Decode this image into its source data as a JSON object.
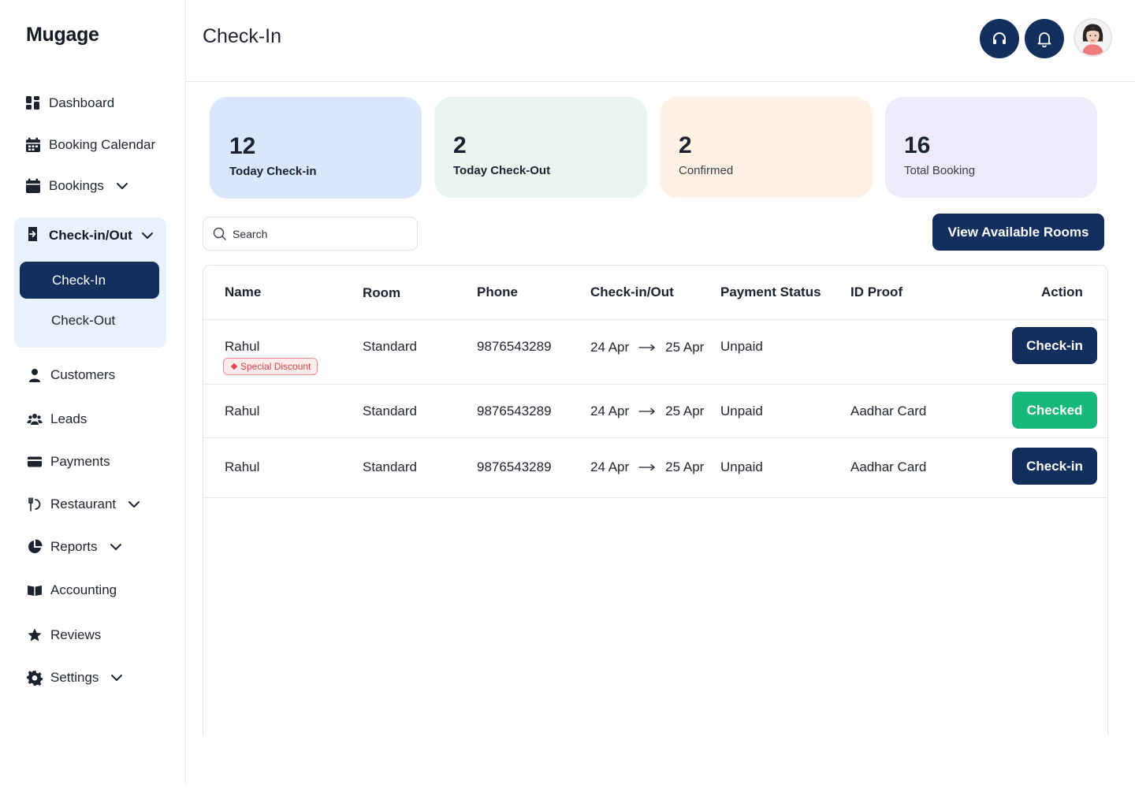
{
  "app": {
    "logo": "Mugage"
  },
  "sidebar": {
    "items": [
      {
        "label": "Dashboard",
        "icon": "dashboard-icon"
      },
      {
        "label": "Booking Calendar",
        "icon": "calendar-icon"
      },
      {
        "label": "Bookings",
        "icon": "calendar-icon",
        "has_dropdown": true
      },
      {
        "label": "Customers",
        "icon": "user-icon"
      },
      {
        "label": "Leads",
        "icon": "users-icon"
      },
      {
        "label": "Payments",
        "icon": "card-icon"
      },
      {
        "label": "Restaurant",
        "icon": "restaurant-icon",
        "has_dropdown": true
      },
      {
        "label": "Reports",
        "icon": "pie-chart-icon",
        "has_dropdown": true
      },
      {
        "label": "Accounting",
        "icon": "book-icon"
      },
      {
        "label": "Reviews",
        "icon": "star-icon"
      },
      {
        "label": "Settings",
        "icon": "gear-icon",
        "has_dropdown": true
      }
    ],
    "group": {
      "label": "Check-in/Out",
      "icon": "door-enter-icon",
      "active": "Check-In",
      "sub": "Check-Out"
    }
  },
  "header": {
    "title": "Check-In",
    "support_icon": "headphones-icon",
    "notification_icon": "bell-icon"
  },
  "stats": [
    {
      "value": "12",
      "label": "Today Check-in",
      "color": "#d9e6fc"
    },
    {
      "value": "2",
      "label": "Today Check-Out",
      "color": "#e8f6ef"
    },
    {
      "value": "2",
      "label": "Confirmed",
      "color": "#fff2e4"
    },
    {
      "value": "16",
      "label": "Total Booking",
      "color": "#efebfd"
    }
  ],
  "search": {
    "placeholder": "Search"
  },
  "cta": {
    "label": "View Available Rooms"
  },
  "table": {
    "columns": [
      "Name",
      "Room",
      "Phone",
      "Check-in/Out",
      "Payment Status",
      "ID Proof",
      "Action"
    ],
    "rows": [
      {
        "name": "Rahul",
        "badge": "Special Discount",
        "room": "Standard",
        "phone": "9876543289",
        "from": "24 Apr",
        "to": "25 Apr",
        "payment": "Unpaid",
        "id_proof": "",
        "action": "Check-in",
        "action_color": "#132f5e"
      },
      {
        "name": "Rahul",
        "room": "Standard",
        "phone": "9876543289",
        "from": "24 Apr",
        "to": "25 Apr",
        "payment": "Unpaid",
        "id_proof": "Aadhar Card",
        "action": "Checked",
        "action_color": "#16b97a"
      },
      {
        "name": "Rahul",
        "room": "Standard",
        "phone": "9876543289",
        "from": "24 Apr",
        "to": "25 Apr",
        "payment": "Unpaid",
        "id_proof": "Aadhar Card",
        "action": "Check-in",
        "action_color": "#132f5e"
      }
    ]
  }
}
